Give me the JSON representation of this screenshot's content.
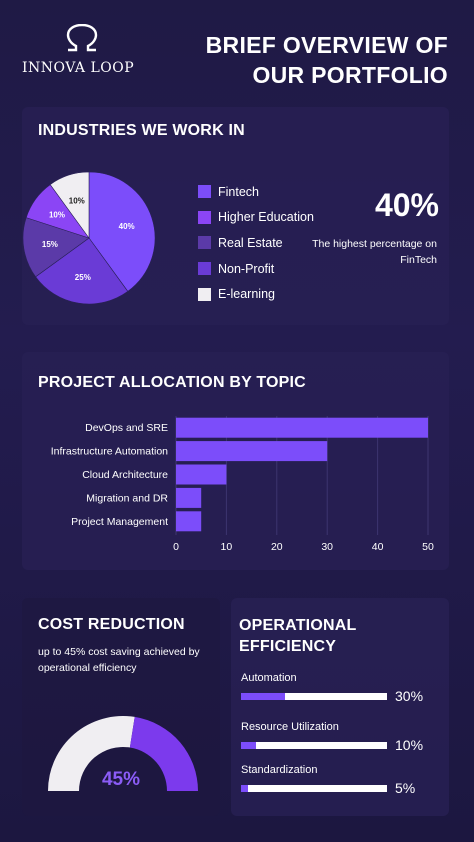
{
  "brand": {
    "name": "INNOVA LOOP",
    "logo_icon": "omega-loop-icon"
  },
  "page_title": {
    "line1": "BRIEF OVERVIEW OF",
    "line2": "OUR PORTFOLIO"
  },
  "colors": {
    "fintech": "#7c4dfa",
    "higher_education": "#8b45f5",
    "real_estate": "#5b3aa8",
    "non_profit": "#6a3bd6",
    "e_learning": "#f0eef2",
    "accent": "#8b5cf6"
  },
  "industries": {
    "title": "INDUSTRIES WE WORK IN",
    "highlight_value": "40%",
    "highlight_note": "The highest percentage on FinTech"
  },
  "allocation": {
    "title": "PROJECT ALLOCATION BY TOPIC"
  },
  "cost": {
    "title": "COST REDUCTION",
    "description": "up to 45% cost saving achieved by operational efficiency",
    "gauge_label": "45%",
    "gauge_fraction": 0.45
  },
  "operational": {
    "title": "OPERATIONAL EFFICIENCY",
    "metrics": [
      {
        "label": "Automation",
        "value": "30%",
        "fraction": 0.3
      },
      {
        "label": "Resource Utilization",
        "value": "10%",
        "fraction": 0.1
      },
      {
        "label": "Standardization",
        "value": "5%",
        "fraction": 0.05
      }
    ]
  },
  "chart_data": [
    {
      "type": "pie",
      "title": "INDUSTRIES WE WORK IN",
      "categories": [
        "Fintech",
        "Higher Education",
        "Real Estate",
        "Non-Profit",
        "E-learning"
      ],
      "values": [
        40,
        10,
        15,
        25,
        10
      ],
      "order_clockwise": [
        "Fintech",
        "Non-Profit",
        "Real Estate",
        "Higher Education",
        "E-learning"
      ],
      "slice_labels": [
        "40%",
        "10%",
        "15%",
        "25%",
        "10%"
      ],
      "legend_position": "right"
    },
    {
      "type": "bar",
      "orientation": "horizontal",
      "title": "PROJECT ALLOCATION BY TOPIC",
      "categories": [
        "DevOps and SRE",
        "Infrastructure Automation",
        "Cloud Architecture",
        "Migration and DR",
        "Project Management"
      ],
      "values": [
        50,
        30,
        10,
        5,
        5
      ],
      "xticks": [
        "0",
        "10",
        "20",
        "30",
        "40",
        "50"
      ],
      "xlim": [
        0,
        50
      ],
      "grid": true
    }
  ]
}
